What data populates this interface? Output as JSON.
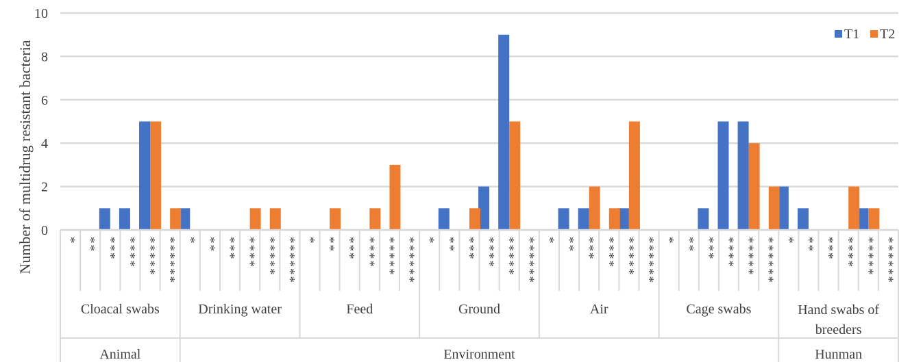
{
  "chart_data": {
    "type": "bar",
    "ylabel": "Number of multidrug resistant bacteria",
    "ylim": [
      0,
      10
    ],
    "yticks": [
      0,
      2,
      4,
      6,
      8,
      10
    ],
    "grid": true,
    "legend": {
      "placement": "top-right"
    },
    "colors": {
      "T1": "#4472C4",
      "T2": "#ED7D31"
    },
    "groups": [
      {
        "label": "Animal",
        "span": 1
      },
      {
        "label": "Environment",
        "span": 5
      },
      {
        "label": "Hunman",
        "span": 1
      }
    ],
    "sources": [
      {
        "label": "Cloacal swabs"
      },
      {
        "label": "Drinking water"
      },
      {
        "label": "Feed"
      },
      {
        "label": "Ground"
      },
      {
        "label": "Air"
      },
      {
        "label": "Cage swabs"
      },
      {
        "label": "Hand swabs of breeders",
        "lines": [
          "Hand swabs of",
          "breeders"
        ]
      }
    ],
    "categories": [
      "*",
      "**",
      "***",
      "****",
      "*****",
      "******"
    ],
    "series": [
      {
        "name": "T1",
        "values": [
          [
            0,
            0,
            1,
            1,
            5,
            0
          ],
          [
            1,
            0,
            0,
            0,
            0,
            0
          ],
          [
            0,
            0,
            0,
            0,
            0,
            0
          ],
          [
            0,
            1,
            0,
            2,
            9,
            0
          ],
          [
            0,
            1,
            1,
            0,
            1,
            0
          ],
          [
            0,
            0,
            1,
            5,
            5,
            0
          ],
          [
            2,
            1,
            0,
            0,
            1,
            0
          ]
        ]
      },
      {
        "name": "T2",
        "values": [
          [
            0,
            0,
            0,
            0,
            5,
            1
          ],
          [
            0,
            0,
            0,
            1,
            1,
            0
          ],
          [
            0,
            1,
            0,
            1,
            3,
            0
          ],
          [
            0,
            0,
            1,
            0,
            5,
            0
          ],
          [
            0,
            0,
            2,
            1,
            5,
            0
          ],
          [
            0,
            0,
            0,
            0,
            4,
            2
          ],
          [
            0,
            0,
            0,
            2,
            1,
            0
          ]
        ]
      }
    ]
  }
}
